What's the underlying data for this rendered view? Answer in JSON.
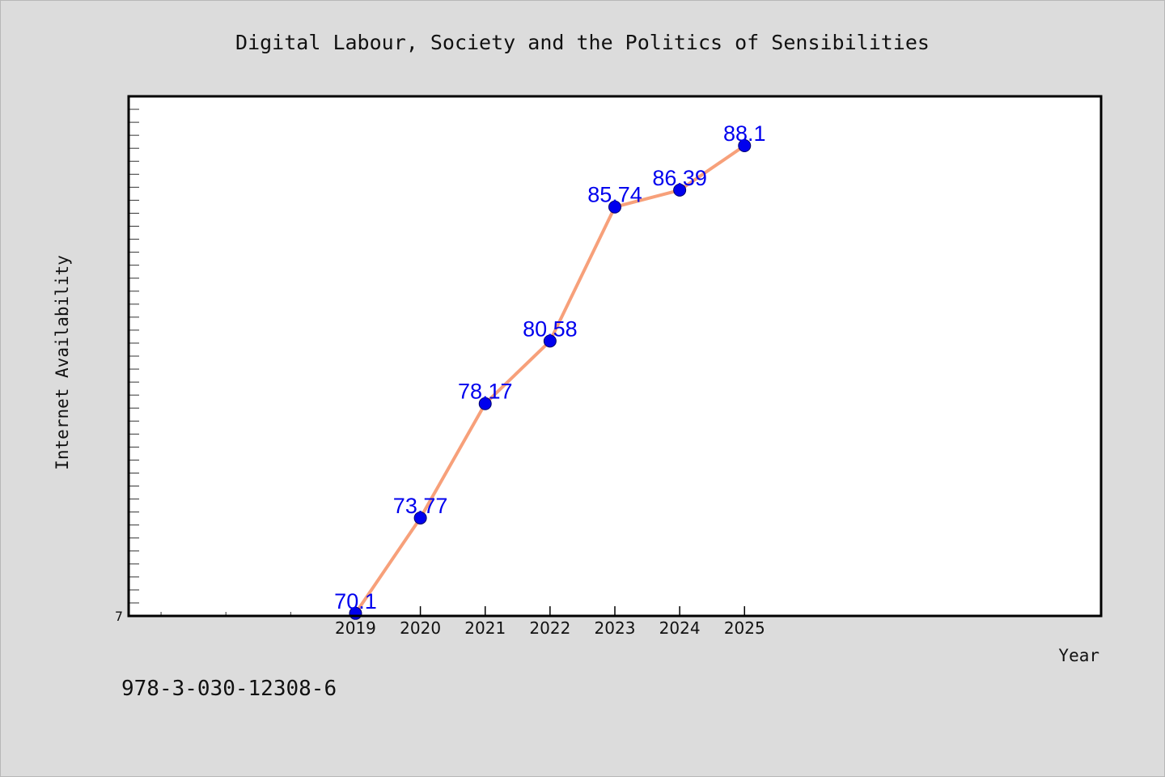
{
  "footnote": "978-3-030-12308-6",
  "chart_data": {
    "type": "line",
    "title": "Digital Labour, Society and the Politics of Sensibilities",
    "xlabel": "Year",
    "ylabel": "Internet Availability",
    "x_ticks": [
      "2019",
      "2020",
      "2021",
      "2022",
      "2023",
      "2024",
      "2025"
    ],
    "y_tick_labels": [
      "7"
    ],
    "xlim": [
      2015.5,
      2030.5
    ],
    "ylim": [
      70,
      90
    ],
    "grid": false,
    "series": [
      {
        "color": "#f7a07a",
        "marker_color": "#0000ee",
        "label_color": "#0000ee",
        "points": [
          {
            "x": 2019,
            "y": 70.1,
            "label": "70.1"
          },
          {
            "x": 2020,
            "y": 73.77,
            "label": "73.77"
          },
          {
            "x": 2021,
            "y": 78.17,
            "label": "78.17"
          },
          {
            "x": 2022,
            "y": 80.58,
            "label": "80.58"
          },
          {
            "x": 2023,
            "y": 85.74,
            "label": "85.74"
          },
          {
            "x": 2024,
            "y": 86.39,
            "label": "86.39"
          },
          {
            "x": 2025,
            "y": 88.1,
            "label": "88.1"
          }
        ]
      }
    ]
  }
}
